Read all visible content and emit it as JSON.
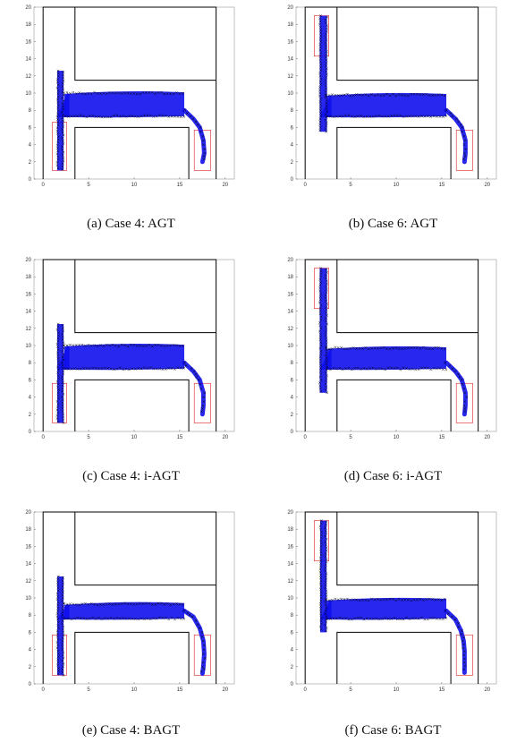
{
  "chart_data": [
    {
      "type": "scatter",
      "caption": "(a) Case 4: AGT",
      "xlim": [
        -1,
        21
      ],
      "ylim": [
        0,
        20
      ],
      "x_ticks": [
        0,
        5,
        10,
        15,
        20
      ],
      "y_ticks": [
        0,
        2,
        4,
        6,
        8,
        10,
        12,
        14,
        16,
        18,
        20
      ],
      "walls": [
        [
          [
            0,
            0
          ],
          [
            0,
            20
          ],
          [
            19,
            20
          ],
          [
            19,
            0
          ]
        ],
        [
          [
            3.5,
            0
          ],
          [
            3.5,
            6
          ],
          [
            16,
            6
          ],
          [
            16,
            0
          ]
        ],
        [
          [
            3.5,
            20
          ],
          [
            3.5,
            11.5
          ],
          [
            19,
            11.5
          ]
        ]
      ],
      "start_box": [
        1,
        1,
        1.6,
        5.6
      ],
      "goal_box": [
        16.6,
        1,
        1.8,
        4.7
      ],
      "trajectory": {
        "vertical": {
          "x_center": 1.9,
          "y_range": [
            1,
            12.6
          ],
          "spread": 0.35
        },
        "horizontal": {
          "x_range": [
            2.3,
            15.5
          ],
          "y_range": [
            7.2,
            10.2
          ]
        },
        "tail": {
          "points": [
            [
              15.5,
              8
            ],
            [
              16.5,
              7
            ],
            [
              17.2,
              6
            ],
            [
              17.6,
              4.5
            ],
            [
              17.7,
              3
            ],
            [
              17.5,
              2
            ]
          ]
        }
      }
    },
    {
      "type": "scatter",
      "caption": "(b) Case 6: AGT",
      "xlim": [
        -1,
        21
      ],
      "ylim": [
        0,
        20
      ],
      "x_ticks": [
        0,
        5,
        10,
        15,
        20
      ],
      "y_ticks": [
        0,
        2,
        4,
        6,
        8,
        10,
        12,
        14,
        16,
        18,
        20
      ],
      "walls": [
        [
          [
            0,
            0
          ],
          [
            0,
            20
          ],
          [
            19,
            20
          ],
          [
            19,
            0
          ]
        ],
        [
          [
            3.5,
            0
          ],
          [
            3.5,
            6
          ],
          [
            16,
            6
          ],
          [
            16,
            0
          ]
        ],
        [
          [
            3.5,
            20
          ],
          [
            3.5,
            11.5
          ],
          [
            19,
            11.5
          ]
        ]
      ],
      "start_box": [
        1,
        14.3,
        1.6,
        4.7
      ],
      "goal_box": [
        16.6,
        1,
        1.8,
        4.7
      ],
      "trajectory": {
        "vertical": {
          "x_center": 2.0,
          "y_range": [
            5.5,
            19
          ],
          "spread": 0.4
        },
        "horizontal": {
          "x_range": [
            2.3,
            15.5
          ],
          "y_range": [
            7.2,
            10
          ]
        },
        "tail": {
          "points": [
            [
              15.5,
              8
            ],
            [
              16.5,
              7
            ],
            [
              17.2,
              6
            ],
            [
              17.6,
              4.5
            ],
            [
              17.6,
              3
            ],
            [
              17.5,
              2
            ]
          ]
        }
      }
    },
    {
      "type": "scatter",
      "caption": "(c) Case 4: i-AGT",
      "xlim": [
        -1,
        21
      ],
      "ylim": [
        0,
        20
      ],
      "x_ticks": [
        0,
        5,
        10,
        15,
        20
      ],
      "y_ticks": [
        0,
        2,
        4,
        6,
        8,
        10,
        12,
        14,
        16,
        18,
        20
      ],
      "walls": [
        [
          [
            0,
            0
          ],
          [
            0,
            20
          ],
          [
            19,
            20
          ],
          [
            19,
            0
          ]
        ],
        [
          [
            3.5,
            0
          ],
          [
            3.5,
            6
          ],
          [
            16,
            6
          ],
          [
            16,
            0
          ]
        ],
        [
          [
            3.5,
            20
          ],
          [
            3.5,
            11.5
          ],
          [
            19,
            11.5
          ]
        ]
      ],
      "start_box": [
        1,
        1,
        1.6,
        4.6
      ],
      "goal_box": [
        16.6,
        1,
        1.8,
        4.6
      ],
      "trajectory": {
        "vertical": {
          "x_center": 1.9,
          "y_range": [
            1,
            12.5
          ],
          "spread": 0.35
        },
        "horizontal": {
          "x_range": [
            2.3,
            15.5
          ],
          "y_range": [
            7.2,
            10.2
          ]
        },
        "tail": {
          "points": [
            [
              15.5,
              8
            ],
            [
              16.5,
              7
            ],
            [
              17.2,
              6
            ],
            [
              17.6,
              4.5
            ],
            [
              17.6,
              3
            ],
            [
              17.5,
              2
            ]
          ]
        }
      }
    },
    {
      "type": "scatter",
      "caption": "(d) Case 6: i-AGT",
      "xlim": [
        -1,
        21
      ],
      "ylim": [
        0,
        20
      ],
      "x_ticks": [
        0,
        5,
        10,
        15,
        20
      ],
      "y_ticks": [
        0,
        2,
        4,
        6,
        8,
        10,
        12,
        14,
        16,
        18,
        20
      ],
      "walls": [
        [
          [
            0,
            0
          ],
          [
            0,
            20
          ],
          [
            19,
            20
          ],
          [
            19,
            0
          ]
        ],
        [
          [
            3.5,
            0
          ],
          [
            3.5,
            6
          ],
          [
            16,
            6
          ],
          [
            16,
            0
          ]
        ],
        [
          [
            3.5,
            20
          ],
          [
            3.5,
            11.5
          ],
          [
            19,
            11.5
          ]
        ]
      ],
      "start_box": [
        1,
        14.3,
        1.6,
        4.7
      ],
      "goal_box": [
        16.6,
        1,
        1.8,
        4.6
      ],
      "trajectory": {
        "vertical": {
          "x_center": 2.0,
          "y_range": [
            4.5,
            19
          ],
          "spread": 0.4
        },
        "horizontal": {
          "x_range": [
            2.3,
            15.5
          ],
          "y_range": [
            7.2,
            9.9
          ]
        },
        "tail": {
          "points": [
            [
              15.5,
              8
            ],
            [
              16.5,
              7
            ],
            [
              17.2,
              6
            ],
            [
              17.6,
              4.5
            ],
            [
              17.6,
              3
            ],
            [
              17.5,
              2
            ]
          ]
        }
      }
    },
    {
      "type": "scatter",
      "caption": "(e) Case 4: BAGT",
      "xlim": [
        -1,
        21
      ],
      "ylim": [
        0,
        20
      ],
      "x_ticks": [
        0,
        5,
        10,
        15,
        20
      ],
      "y_ticks": [
        0,
        2,
        4,
        6,
        8,
        10,
        12,
        14,
        16,
        18,
        20
      ],
      "walls": [
        [
          [
            0,
            0
          ],
          [
            0,
            20
          ],
          [
            19,
            20
          ],
          [
            19,
            0
          ]
        ],
        [
          [
            3.5,
            0
          ],
          [
            3.5,
            6
          ],
          [
            16,
            6
          ],
          [
            16,
            0
          ]
        ],
        [
          [
            3.5,
            20
          ],
          [
            3.5,
            11.5
          ],
          [
            19,
            11.5
          ]
        ]
      ],
      "start_box": [
        1,
        1,
        1.6,
        4.7
      ],
      "goal_box": [
        16.6,
        1,
        1.8,
        4.7
      ],
      "trajectory": {
        "vertical": {
          "x_center": 1.9,
          "y_range": [
            1,
            12.5
          ],
          "spread": 0.35
        },
        "horizontal": {
          "x_range": [
            2.3,
            15.5
          ],
          "y_range": [
            7.5,
            9.5
          ]
        },
        "tail": {
          "points": [
            [
              15.5,
              8.5
            ],
            [
              16.5,
              7.8
            ],
            [
              17.2,
              6.5
            ],
            [
              17.6,
              5
            ],
            [
              17.7,
              3.5
            ],
            [
              17.6,
              2
            ],
            [
              17.5,
              1.2
            ]
          ]
        }
      }
    },
    {
      "type": "scatter",
      "caption": "(f) Case 6: BAGT",
      "xlim": [
        -1,
        21
      ],
      "ylim": [
        0,
        20
      ],
      "x_ticks": [
        0,
        5,
        10,
        15,
        20
      ],
      "y_ticks": [
        0,
        2,
        4,
        6,
        8,
        10,
        12,
        14,
        16,
        18,
        20
      ],
      "walls": [
        [
          [
            0,
            0
          ],
          [
            0,
            20
          ],
          [
            19,
            20
          ],
          [
            19,
            0
          ]
        ],
        [
          [
            3.5,
            0
          ],
          [
            3.5,
            6
          ],
          [
            16,
            6
          ],
          [
            16,
            0
          ]
        ],
        [
          [
            3.5,
            20
          ],
          [
            3.5,
            11.5
          ],
          [
            19,
            11.5
          ]
        ]
      ],
      "start_box": [
        1,
        14.3,
        1.6,
        4.7
      ],
      "goal_box": [
        16.6,
        1,
        1.8,
        4.7
      ],
      "trajectory": {
        "vertical": {
          "x_center": 2.0,
          "y_range": [
            6,
            19
          ],
          "spread": 0.35
        },
        "horizontal": {
          "x_range": [
            2.3,
            15.5
          ],
          "y_range": [
            7.5,
            10
          ]
        },
        "tail": {
          "points": [
            [
              15.5,
              8.5
            ],
            [
              16.5,
              7.5
            ],
            [
              17.1,
              6.2
            ],
            [
              17.4,
              5
            ],
            [
              17.5,
              3.8
            ],
            [
              17.5,
              2.5
            ],
            [
              17.5,
              1.3
            ]
          ]
        }
      }
    }
  ],
  "style": {
    "wall_color": "#000000",
    "box_color": "#dd2222",
    "path_color": "#1010ee",
    "marker_color": "#000000"
  }
}
